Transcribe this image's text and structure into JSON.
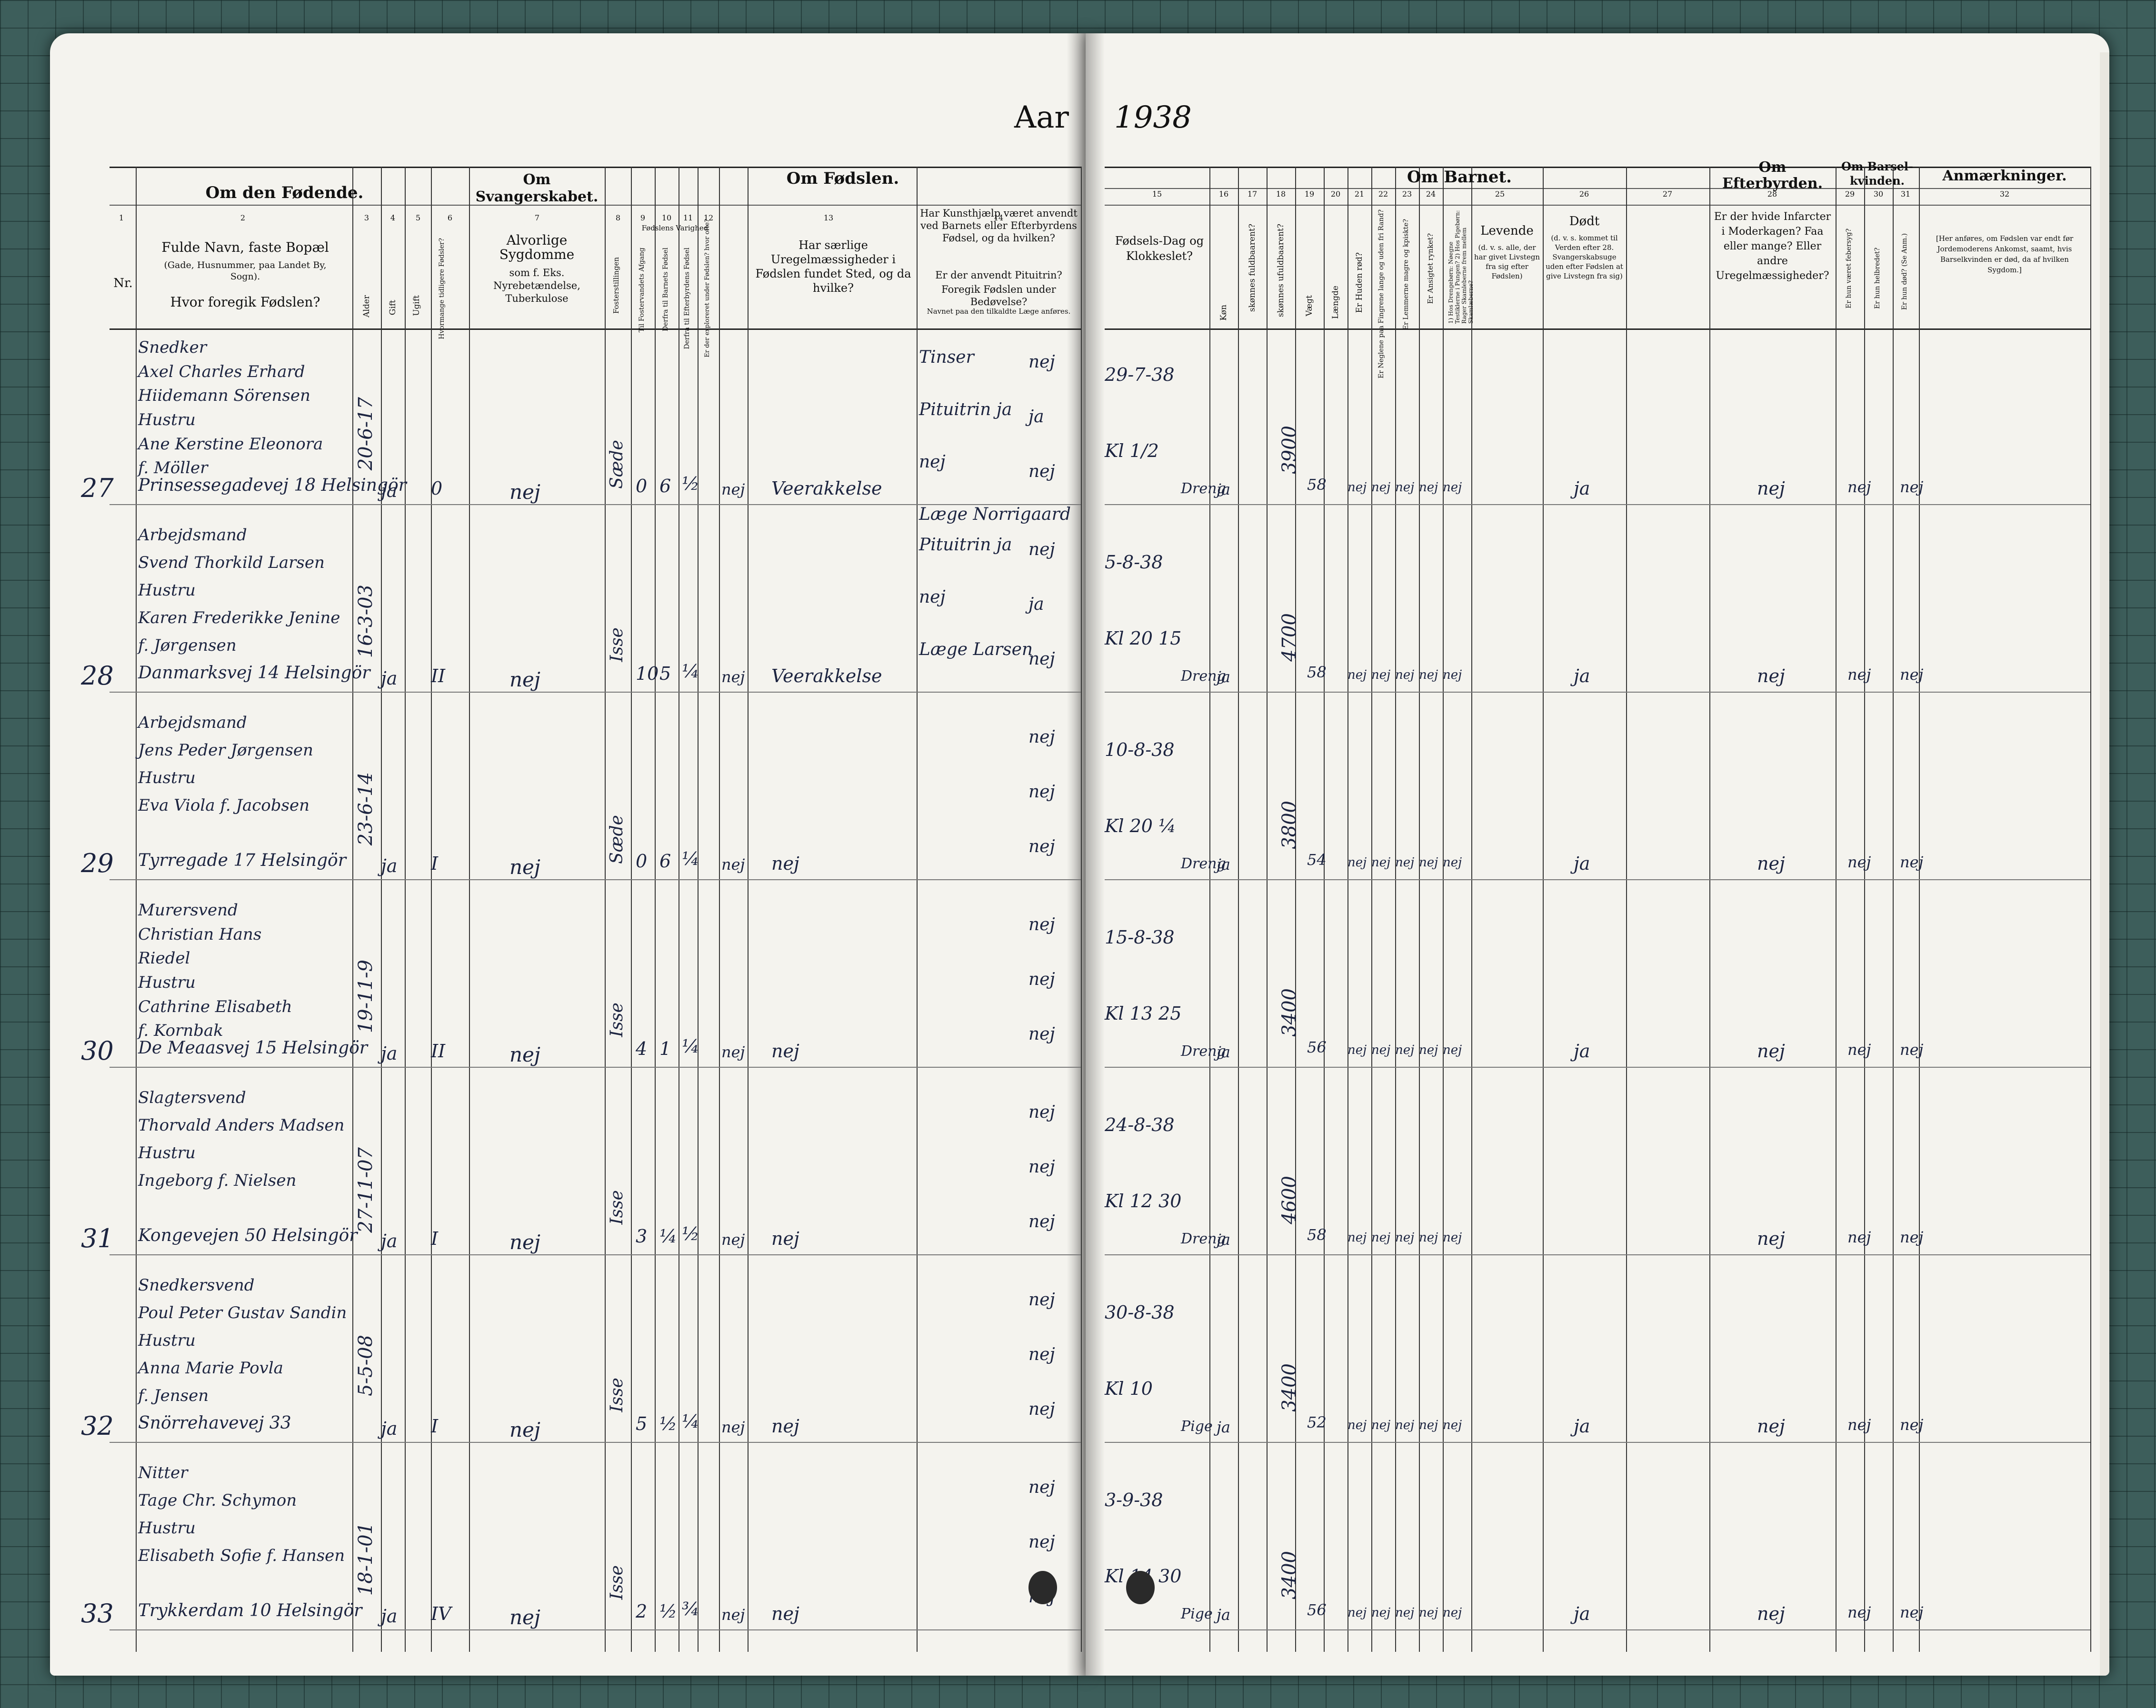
{
  "header": {
    "aar_label": "Aar",
    "year": "1938"
  },
  "left_groups": {
    "om_den_fodende": "Om den Fødende.",
    "om_svangerskabet": "Om Svangerskabet.",
    "om_fodslen": "Om Fødslen."
  },
  "right_groups": {
    "om_barnet": "Om Barnet.",
    "om_efterbyrden": "Om Efterbyrden.",
    "om_barselkvinden": "Om Barsel-kvinden.",
    "anmaerkninger": "Anmærkninger."
  },
  "left_cols": {
    "nr": "Nr.",
    "navn_a": "Fulde Navn, faste Bopæl",
    "navn_b": "(Gade, Husnummer, paa Landet By, Sogn).",
    "navn_c": "Hvor foregik Fødslen?",
    "alder": "Alder",
    "gift": "Gift",
    "ugift": "Ugift",
    "hvormange": "Hvormange tidligere Fødsler?",
    "sygdomme_a": "Alvorlige Sygdomme",
    "sygdomme_b": "som f. Eks. Nyrebetændelse, Tuberkulose",
    "fosterstilling": "Fosterstillingen",
    "varighed": "Fødslens Varighed",
    "til_fostervand": "Til Fostervandets Afgang",
    "derfra_fodsel": "Derfra til Barnets Fødsel",
    "derfra_efterbyrd": "Derfra til Efterbyrdens Fødsel",
    "eksploreret": "Er der exploreret under Fødslen? hvor ofte?",
    "uregelmaessig": "Har særlige Uregelmæssigheder i Fødslen fundet Sted, og da hvilke?",
    "kunsthjaelp_a": "Har Kunsthjælp været anvendt ved Barnets eller Efterbyrdens Fødsel, og da hvilken?",
    "kunsthjaelp_b": "Er der anvendt Pituitrin?",
    "kunsthjaelp_c": "Foregik Fødslen under Bedøvelse?",
    "kunsthjaelp_d": "Navnet paa den tilkaldte Læge anføres."
  },
  "right_cols": {
    "fodselsdag": "Fødsels-Dag og Klokkeslet?",
    "kon": "Køn",
    "fuldbaaren": "skønnes fuldbaarent?",
    "ufuldbaaren": "skønnes ufuldbaarent?",
    "vaegt": "Vægt",
    "laengde": "Længde",
    "huden_rod": "Er Huden rød?",
    "neglene": "Er Neglene paa Fingrene lange og uden fri Rand?",
    "lemmerne": "Er Lemmerne magre og kpiskte?",
    "ansigtet": "Er Ansigtet rynket?",
    "drengebarn": "1) Hos Drengebørn: Nøegne Testiklerne i Pungen? 2) Hos Pigebørn: Rager Skamleberne frem mellem Skamlæberne?",
    "levende_a": "Levende",
    "levende_b": "(d. v. s. alle, der har givet Livstegn fra sig efter Fødslen)",
    "dodt_a": "Dødt",
    "dodt_b": "(d. v. s. kommet til Verden efter 28. Svangerskabsuge uden efter Fødslen at give Livstegn fra sig)",
    "efterbyrd_q": "Er der hvide Infarcter i Moderkagen? Faa eller mange? Eller andre Uregelmæssigheder?",
    "feber": "Er hun været febersyg?",
    "helbredet": "Er hun helbredet?",
    "dod": "Er hun død? (Se Anm.)",
    "anm_text": "[Her anføres, om Fødslen var endt før Jordemoderens Ankomst, saamt, hvis Barselkvinden er død, da af hvilken Sygdom.]"
  },
  "col_numbers_left": [
    "1",
    "2",
    "3",
    "4",
    "5",
    "6",
    "7",
    "8",
    "9",
    "10",
    "11",
    "12",
    "13",
    "14"
  ],
  "col_numbers_right": [
    "15",
    "16",
    "17",
    "18",
    "19",
    "20",
    "21",
    "22",
    "23",
    "24",
    "25",
    "26",
    "27",
    "28",
    "29",
    "30",
    "31",
    "32"
  ],
  "entries": [
    {
      "nr": "27",
      "lines": [
        "Snedker",
        "Axel Charles Erhard",
        "Hiidemann Sörensen",
        "Hustru",
        "Ane Kerstine Eleonora",
        "f. Möller"
      ],
      "address": "Prinsessegadevej 18 Helsingör",
      "alder": "20-6-17",
      "gift": "ja",
      "tidligere": "0",
      "sygdomme": "nej",
      "stilling": "Sæde",
      "v1": "0",
      "v2": "6",
      "v3": "½",
      "expl": "nej",
      "uregel": "Veerakkelse",
      "kunst": [
        "Tinser",
        "Pituitrin ja",
        "nej",
        "Læge Norrigaard"
      ],
      "k_col": [
        "nej",
        "ja",
        "nej"
      ],
      "dag": "29-7-38",
      "klok": "Kl 1/2",
      "kon": "Dreng",
      "fuld": "ja",
      "vaegt": "3900",
      "laengde": "58",
      "r": [
        "nej",
        "nej",
        "nej",
        "nej",
        "nej"
      ],
      "levende": "ja",
      "efter": "nej",
      "feb": "nej",
      "dod": "nej"
    },
    {
      "nr": "28",
      "lines": [
        "Arbejdsmand",
        "Svend Thorkild Larsen",
        "Hustru",
        "Karen Frederikke Jenine",
        "f. Jørgensen"
      ],
      "address": "Danmarksvej 14 Helsingör",
      "alder": "16-3-03",
      "gift": "ja",
      "tidligere": "II",
      "sygdomme": "nej",
      "stilling": "Isse",
      "v1": "10",
      "v2": "5",
      "v3": "¼",
      "expl": "nej",
      "uregel": "Veerakkelse",
      "kunst": [
        "Pituitrin ja",
        "nej",
        "Læge Larsen"
      ],
      "k_col": [
        "nej",
        "ja",
        "nej"
      ],
      "dag": "5-8-38",
      "klok": "Kl 20 15",
      "kon": "Dreng",
      "fuld": "ja",
      "vaegt": "4700",
      "laengde": "58",
      "r": [
        "nej",
        "nej",
        "nej",
        "nej",
        "nej"
      ],
      "levende": "ja",
      "efter": "nej",
      "feb": "nej",
      "dod": "nej"
    },
    {
      "nr": "29",
      "lines": [
        "Arbejdsmand",
        "Jens Peder Jørgensen",
        "Hustru",
        "Eva Viola f. Jacobsen"
      ],
      "address": "Tyrregade 17 Helsingör",
      "alder": "23-6-14",
      "gift": "ja",
      "tidligere": "I",
      "sygdomme": "nej",
      "stilling": "Sæde",
      "v1": "0",
      "v2": "6",
      "v3": "¼",
      "expl": "nej",
      "uregel": "nej",
      "kunst": [],
      "k_col": [
        "nej",
        "nej",
        "nej"
      ],
      "dag": "10-8-38",
      "klok": "Kl 20 ¼",
      "kon": "Dreng",
      "fuld": "ja",
      "vaegt": "3800",
      "laengde": "54",
      "r": [
        "nej",
        "nej",
        "nej",
        "nej",
        "nej"
      ],
      "levende": "ja",
      "efter": "nej",
      "feb": "nej",
      "dod": "nej"
    },
    {
      "nr": "30",
      "lines": [
        "Murersvend",
        "Christian Hans",
        "Riedel",
        "Hustru",
        "Cathrine Elisabeth",
        "f. Kornbak"
      ],
      "address": "De Meaasvej 15 Helsingör",
      "alder": "19-11-9",
      "gift": "ja",
      "tidligere": "II",
      "sygdomme": "nej",
      "stilling": "Isse",
      "v1": "4",
      "v2": "1",
      "v3": "¼",
      "expl": "nej",
      "uregel": "nej",
      "kunst": [],
      "k_col": [
        "nej",
        "nej",
        "nej"
      ],
      "dag": "15-8-38",
      "klok": "Kl 13 25",
      "kon": "Dreng",
      "fuld": "ja",
      "vaegt": "3400",
      "laengde": "56",
      "r": [
        "nej",
        "nej",
        "nej",
        "nej",
        "nej"
      ],
      "levende": "ja",
      "efter": "nej",
      "feb": "nej",
      "dod": "nej"
    },
    {
      "nr": "31",
      "lines": [
        "Slagtersvend",
        "Thorvald Anders Madsen",
        "Hustru",
        "Ingeborg f. Nielsen"
      ],
      "address": "Kongevejen 50 Helsingör",
      "alder": "27-11-07",
      "gift": "ja",
      "tidligere": "I",
      "sygdomme": "nej",
      "stilling": "Isse",
      "v1": "3",
      "v2": "¼",
      "v3": "½",
      "expl": "nej",
      "uregel": "nej",
      "kunst": [],
      "k_col": [
        "nej",
        "nej",
        "nej"
      ],
      "dag": "24-8-38",
      "klok": "Kl 12 30",
      "kon": "Dreng",
      "fuld": "ja",
      "vaegt": "4600",
      "laengde": "58",
      "r": [
        "nej",
        "nej",
        "nej",
        "nej",
        "nej"
      ],
      "levende": "",
      "efter": "nej",
      "feb": "nej",
      "dod": "nej"
    },
    {
      "nr": "32",
      "lines": [
        "Snedkersvend",
        "Poul Peter Gustav Sandin",
        "Hustru",
        "Anna Marie Povla",
        "f. Jensen"
      ],
      "address": "Snörrehavevej 33",
      "alder": "5-5-08",
      "gift": "ja",
      "tidligere": "I",
      "sygdomme": "nej",
      "stilling": "Isse",
      "v1": "5",
      "v2": "½",
      "v3": "¼",
      "expl": "nej",
      "uregel": "nej",
      "kunst": [],
      "k_col": [
        "nej",
        "nej",
        "nej"
      ],
      "dag": "30-8-38",
      "klok": "Kl 10",
      "kon": "Pige",
      "fuld": "ja",
      "vaegt": "3400",
      "laengde": "52",
      "r": [
        "nej",
        "nej",
        "nej",
        "nej",
        "nej"
      ],
      "levende": "ja",
      "efter": "nej",
      "feb": "nej",
      "dod": "nej"
    },
    {
      "nr": "33",
      "lines": [
        "Nitter",
        "Tage Chr. Schymon",
        "Hustru",
        "Elisabeth Sofie f. Hansen"
      ],
      "address": "Trykkerdam 10 Helsingör",
      "alder": "18-1-01",
      "gift": "ja",
      "tidligere": "IV",
      "sygdomme": "nej",
      "stilling": "Isse",
      "v1": "2",
      "v2": "½",
      "v3": "¾",
      "expl": "nej",
      "uregel": "nej",
      "kunst": [],
      "k_col": [
        "nej",
        "nej",
        "nej"
      ],
      "dag": "3-9-38",
      "klok": "Kl 14 30",
      "kon": "Pige",
      "fuld": "ja",
      "vaegt": "3400",
      "laengde": "56",
      "r": [
        "nej",
        "nej",
        "nej",
        "nej",
        "nej"
      ],
      "levende": "ja",
      "efter": "nej",
      "feb": "nej",
      "dod": "nej"
    }
  ]
}
